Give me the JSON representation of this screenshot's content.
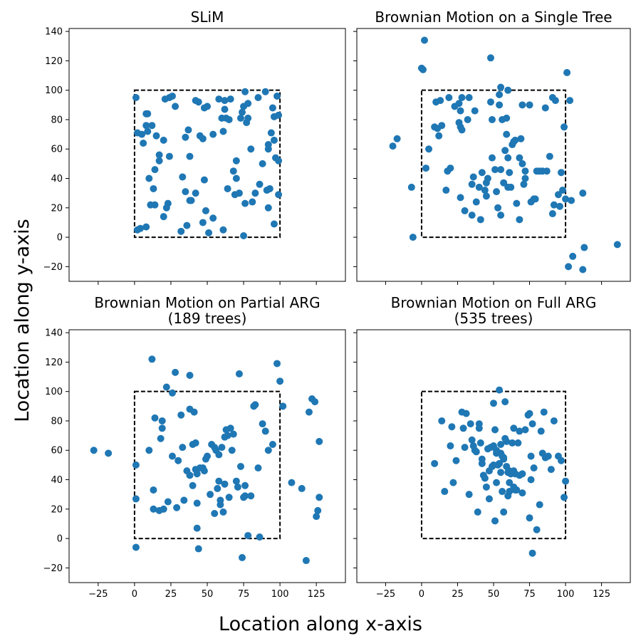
{
  "supxlabel": "Location along x-axis",
  "supylabel": "Location along y-axis",
  "chart_data": [
    {
      "type": "scatter",
      "title_lines": [
        "SLiM"
      ],
      "show_xticklabels": false,
      "show_yticklabels": true,
      "xlim": [
        -45,
        145
      ],
      "ylim": [
        -30,
        142
      ],
      "xticks": [
        -25,
        0,
        25,
        50,
        75,
        100,
        125
      ],
      "yticks": [
        -20,
        0,
        20,
        40,
        60,
        80,
        100,
        120,
        140
      ],
      "reference_box": {
        "x": [
          0,
          100
        ],
        "y": [
          0,
          100
        ]
      },
      "point_color": "#1f77b4",
      "x": [
        1,
        2,
        8,
        9,
        5,
        8,
        6,
        9,
        10,
        14,
        12,
        15,
        17,
        17,
        21,
        24,
        20,
        23,
        22,
        26,
        28,
        33,
        35,
        37,
        35,
        38,
        39,
        42,
        44,
        45,
        48,
        50,
        47,
        48,
        49,
        54,
        58,
        61,
        60,
        62,
        62,
        65,
        63,
        66,
        68,
        70,
        70,
        73,
        74,
        75,
        76,
        77,
        78,
        78,
        80,
        81,
        83,
        85,
        86,
        88,
        90,
        92,
        92,
        94,
        95,
        96,
        97,
        98,
        99,
        96,
        93,
        91,
        92,
        96,
        99,
        99,
        76,
        75,
        72,
        69,
        64,
        61,
        54,
        51,
        47,
        42,
        38,
        36,
        32,
        24,
        20,
        14,
        11,
        13,
        2,
        4,
        8
      ],
      "y": [
        95,
        71,
        84,
        84,
        70,
        76,
        64,
        72,
        40,
        46,
        76,
        69,
        56,
        52,
        94,
        95,
        66,
        23,
        20,
        96,
        89,
        41,
        68,
        73,
        31,
        55,
        25,
        93,
        92,
        69,
        88,
        89,
        67,
        39,
        18,
        70,
        94,
        72,
        81,
        87,
        93,
        80,
        81,
        94,
        45,
        40,
        52,
        81,
        85,
        89,
        99,
        78,
        81,
        91,
        60,
        24,
        30,
        95,
        36,
        50,
        99,
        60,
        63,
        71,
        88,
        66,
        54,
        96,
        83,
        82,
        33,
        32,
        20,
        9,
        29,
        52,
        23,
        1,
        30,
        29,
        33,
        5,
        13,
        3,
        10,
        30,
        25,
        8,
        4,
        55,
        14,
        22,
        22,
        33,
        5,
        6,
        7
      ]
    },
    {
      "type": "scatter",
      "title_lines": [
        "Brownian Motion on a Single Tree"
      ],
      "show_xticklabels": false,
      "show_yticklabels": false,
      "xlim": [
        -45,
        145
      ],
      "ylim": [
        -30,
        142
      ],
      "xticks": [
        -25,
        0,
        25,
        50,
        75,
        100,
        125
      ],
      "yticks": [
        -20,
        0,
        20,
        40,
        60,
        80,
        100,
        120,
        140
      ],
      "reference_box": {
        "x": [
          0,
          100
        ],
        "y": [
          0,
          100
        ]
      },
      "point_color": "#1f77b4",
      "x": [
        -20,
        -17,
        -7,
        -6,
        2,
        0,
        1,
        10,
        11,
        13,
        17,
        18,
        20,
        19,
        23,
        26,
        26,
        27,
        28,
        30,
        32,
        35,
        36,
        37,
        40,
        41,
        42,
        44,
        45,
        46,
        48,
        49,
        51,
        53,
        54,
        55,
        56,
        57,
        58,
        59,
        60,
        61,
        62,
        63,
        64,
        65,
        66,
        68,
        68,
        69,
        70,
        71,
        72,
        75,
        76,
        78,
        80,
        82,
        84,
        86,
        87,
        89,
        91,
        92,
        93,
        95,
        96,
        97,
        98,
        99,
        100,
        101,
        102,
        103,
        104,
        105,
        112,
        113,
        136,
        112,
        91,
        79,
        59,
        45,
        49,
        27,
        27,
        33,
        28,
        14,
        12,
        9,
        5,
        3,
        55,
        55,
        54,
        60,
        52,
        35,
        48,
        70,
        72,
        38,
        60
      ],
      "y": [
        62,
        67,
        34,
        0,
        134,
        115,
        114,
        92,
        74,
        93,
        32,
        45,
        47,
        95,
        89,
        91,
        78,
        75,
        73,
        18,
        80,
        15,
        41,
        86,
        34,
        12,
        44,
        32,
        37,
        40,
        92,
        54,
        46,
        20,
        97,
        15,
        80,
        37,
        59,
        81,
        100,
        44,
        34,
        63,
        65,
        66,
        23,
        12,
        54,
        67,
        50,
        36,
        45,
        90,
        24,
        26,
        45,
        45,
        45,
        88,
        45,
        55,
        95,
        22,
        93,
        29,
        21,
        44,
        32,
        75,
        26,
        112,
        -20,
        93,
        25,
        -13,
        -22,
        -7,
        -5,
        30,
        16,
        26,
        70,
        28,
        80,
        27,
        86,
        95,
        95,
        76,
        69,
        75,
        60,
        47,
        46,
        102,
        90,
        54,
        31,
        36,
        122,
        90,
        40,
        24,
        34
      ]
    },
    {
      "type": "scatter",
      "title_lines": [
        "Brownian Motion on Partial ARG",
        "(189 trees)"
      ],
      "show_xticklabels": true,
      "show_yticklabels": true,
      "xlim": [
        -45,
        145
      ],
      "ylim": [
        -30,
        142
      ],
      "xticks": [
        -25,
        0,
        25,
        50,
        75,
        100,
        125
      ],
      "yticks": [
        -20,
        0,
        20,
        40,
        60,
        80,
        100,
        120,
        140
      ],
      "reference_box": {
        "x": [
          0,
          100
        ],
        "y": [
          0,
          100
        ]
      },
      "point_color": "#1f77b4",
      "x": [
        -28,
        -18,
        1,
        1,
        1,
        10,
        12,
        13,
        13,
        14,
        17,
        18,
        19,
        19,
        22,
        23,
        26,
        26,
        28,
        29,
        30,
        32,
        33,
        34,
        36,
        38,
        38,
        40,
        40,
        41,
        42,
        43,
        43,
        44,
        45,
        47,
        48,
        50,
        52,
        53,
        55,
        56,
        57,
        58,
        59,
        60,
        61,
        62,
        63,
        64,
        65,
        66,
        67,
        68,
        70,
        72,
        73,
        75,
        76,
        78,
        80,
        82,
        83,
        85,
        86,
        88,
        90,
        92,
        95,
        98,
        100,
        102,
        108,
        115,
        118,
        120,
        122,
        124,
        125,
        126,
        127,
        127,
        76,
        42,
        43,
        59,
        74,
        49,
        71,
        55,
        20,
        58,
        62,
        38
      ],
      "y": [
        60,
        58,
        50,
        27,
        -6,
        60,
        122,
        20,
        33,
        82,
        19,
        68,
        80,
        75,
        103,
        25,
        56,
        99,
        113,
        21,
        53,
        84,
        62,
        26,
        46,
        111,
        88,
        36,
        64,
        86,
        47,
        24,
        7,
        -7,
        48,
        48,
        46,
        56,
        30,
        64,
        17,
        60,
        34,
        39,
        26,
        62,
        18,
        69,
        74,
        70,
        28,
        75,
        60,
        71,
        39,
        112,
        49,
        28,
        36,
        2,
        29,
        90,
        91,
        48,
        1,
        78,
        73,
        60,
        64,
        119,
        107,
        90,
        38,
        34,
        -15,
        86,
        95,
        93,
        15,
        19,
        66,
        28,
        29,
        65,
        44,
        23,
        -13,
        54,
        35,
        62,
        20,
        57,
        37,
        43
      ]
    },
    {
      "type": "scatter",
      "title_lines": [
        "Brownian Motion on Full ARG",
        "(535 trees)"
      ],
      "show_xticklabels": true,
      "show_yticklabels": false,
      "xlim": [
        -45,
        145
      ],
      "ylim": [
        -30,
        142
      ],
      "xticks": [
        -25,
        0,
        25,
        50,
        75,
        100,
        125
      ],
      "yticks": [
        -20,
        0,
        20,
        40,
        60,
        80,
        100,
        120,
        140
      ],
      "reference_box": {
        "x": [
          0,
          100
        ],
        "y": [
          0,
          100
        ]
      },
      "point_color": "#1f77b4",
      "x": [
        9,
        14,
        16,
        20,
        21,
        22,
        24,
        28,
        29,
        30,
        31,
        33,
        34,
        35,
        36,
        38,
        39,
        40,
        41,
        42,
        43,
        44,
        45,
        46,
        47,
        48,
        49,
        50,
        51,
        52,
        53,
        54,
        55,
        56,
        57,
        58,
        59,
        60,
        61,
        62,
        63,
        64,
        65,
        66,
        67,
        68,
        70,
        72,
        75,
        76,
        77,
        78,
        80,
        82,
        84,
        85,
        86,
        88,
        90,
        92,
        95,
        97,
        99,
        100,
        50,
        55,
        59,
        57,
        64,
        60,
        70,
        47,
        40,
        76,
        74,
        58,
        65,
        64,
        37,
        54,
        52,
        68,
        51,
        75,
        61,
        50,
        55,
        56,
        42,
        61,
        57,
        83,
        77,
        62,
        52
      ],
      "y": [
        51,
        80,
        32,
        63,
        76,
        38,
        53,
        86,
        75,
        62,
        85,
        30,
        78,
        67,
        63,
        59,
        18,
        75,
        65,
        54,
        43,
        41,
        35,
        61,
        27,
        62,
        49,
        92,
        74,
        38,
        50,
        101,
        58,
        56,
        54,
        93,
        66,
        45,
        46,
        44,
        65,
        75,
        33,
        33,
        65,
        73,
        44,
        74,
        85,
        40,
        78,
        48,
        6,
        23,
        58,
        86,
        55,
        56,
        47,
        80,
        56,
        53,
        28,
        39,
        63,
        64,
        49,
        18,
        35,
        29,
        31,
        46,
        78,
        56,
        84,
        68,
        44,
        46,
        60,
        51,
        60,
        43,
        12,
        14,
        38,
        50,
        45,
        32,
        51,
        32,
        55,
        73,
        -10,
        44,
        58
      ]
    }
  ]
}
